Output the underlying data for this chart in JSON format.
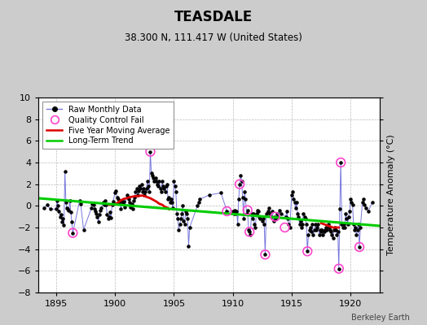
{
  "title": "TEASDALE",
  "subtitle": "38.300 N, 111.417 W (United States)",
  "credit": "Berkeley Earth",
  "ylabel_right": "Temperature Anomaly (°C)",
  "xlim": [
    1893.5,
    1922.5
  ],
  "ylim": [
    -8,
    10
  ],
  "yticks": [
    -8,
    -6,
    -4,
    -2,
    0,
    2,
    4,
    6,
    8,
    10
  ],
  "xticks": [
    1895,
    1900,
    1905,
    1910,
    1915,
    1920
  ],
  "fig_background": "#cccccc",
  "plot_background": "#ffffff",
  "raw_line_color": "#7777dd",
  "raw_dot_color": "#000000",
  "qc_fail_color": "#ff44cc",
  "moving_avg_color": "#dd0000",
  "trend_color": "#00cc00",
  "raw_monthly_data": [
    [
      1894.0,
      -0.2
    ],
    [
      1894.25,
      0.1
    ],
    [
      1894.5,
      -0.3
    ],
    [
      1895.0,
      -0.3
    ],
    [
      1895.083,
      0.5
    ],
    [
      1895.167,
      0.0
    ],
    [
      1895.25,
      -0.5
    ],
    [
      1895.333,
      -1.0
    ],
    [
      1895.417,
      -0.8
    ],
    [
      1895.5,
      -1.5
    ],
    [
      1895.583,
      -1.2
    ],
    [
      1895.667,
      -1.8
    ],
    [
      1895.75,
      3.2
    ],
    [
      1895.833,
      0.3
    ],
    [
      1895.917,
      -0.2
    ],
    [
      1896.0,
      -0.3
    ],
    [
      1896.083,
      -0.4
    ],
    [
      1896.167,
      0.5
    ],
    [
      1896.25,
      -0.6
    ],
    [
      1896.333,
      -1.5
    ],
    [
      1896.417,
      -2.5
    ],
    [
      1897.0,
      0.5
    ],
    [
      1897.083,
      0.2
    ],
    [
      1897.333,
      -2.2
    ],
    [
      1898.0,
      -0.2
    ],
    [
      1898.083,
      0.2
    ],
    [
      1898.167,
      0.1
    ],
    [
      1898.25,
      -0.3
    ],
    [
      1898.333,
      -0.5
    ],
    [
      1898.417,
      -0.7
    ],
    [
      1898.5,
      -1.0
    ],
    [
      1898.583,
      -1.5
    ],
    [
      1898.667,
      -0.8
    ],
    [
      1898.75,
      -0.4
    ],
    [
      1898.833,
      -0.2
    ],
    [
      1899.0,
      0.3
    ],
    [
      1899.083,
      0.1
    ],
    [
      1899.167,
      0.5
    ],
    [
      1899.25,
      0.1
    ],
    [
      1899.333,
      -0.8
    ],
    [
      1899.417,
      -1.2
    ],
    [
      1899.5,
      -1.0
    ],
    [
      1899.583,
      -0.6
    ],
    [
      1899.667,
      -1.1
    ],
    [
      1899.75,
      0.1
    ],
    [
      1899.833,
      0.4
    ],
    [
      1900.0,
      1.2
    ],
    [
      1900.083,
      1.4
    ],
    [
      1900.167,
      0.8
    ],
    [
      1900.25,
      0.6
    ],
    [
      1900.333,
      0.3
    ],
    [
      1900.417,
      0.4
    ],
    [
      1900.5,
      -0.3
    ],
    [
      1900.583,
      0.4
    ],
    [
      1900.667,
      0.2
    ],
    [
      1900.75,
      0.4
    ],
    [
      1900.833,
      -0.1
    ],
    [
      1901.0,
      1.0
    ],
    [
      1901.083,
      0.8
    ],
    [
      1901.167,
      0.6
    ],
    [
      1901.25,
      0.3
    ],
    [
      1901.333,
      -0.1
    ],
    [
      1901.417,
      0.2
    ],
    [
      1901.5,
      -0.3
    ],
    [
      1901.583,
      0.5
    ],
    [
      1901.667,
      0.8
    ],
    [
      1901.75,
      1.3
    ],
    [
      1901.833,
      1.6
    ],
    [
      1901.917,
      1.0
    ],
    [
      1902.0,
      1.4
    ],
    [
      1902.083,
      1.8
    ],
    [
      1902.167,
      1.6
    ],
    [
      1902.25,
      2.0
    ],
    [
      1902.333,
      1.3
    ],
    [
      1902.417,
      1.6
    ],
    [
      1902.5,
      1.0
    ],
    [
      1902.583,
      1.3
    ],
    [
      1902.667,
      1.6
    ],
    [
      1902.75,
      2.3
    ],
    [
      1902.833,
      1.8
    ],
    [
      1902.917,
      1.3
    ],
    [
      1903.0,
      5.0
    ],
    [
      1903.083,
      3.0
    ],
    [
      1903.167,
      2.8
    ],
    [
      1903.25,
      2.6
    ],
    [
      1903.333,
      2.3
    ],
    [
      1903.417,
      2.6
    ],
    [
      1903.5,
      2.3
    ],
    [
      1903.583,
      2.0
    ],
    [
      1903.667,
      1.8
    ],
    [
      1903.75,
      2.3
    ],
    [
      1903.833,
      1.6
    ],
    [
      1903.917,
      1.3
    ],
    [
      1904.0,
      2.3
    ],
    [
      1904.083,
      1.8
    ],
    [
      1904.167,
      1.6
    ],
    [
      1904.25,
      1.3
    ],
    [
      1904.333,
      1.8
    ],
    [
      1904.417,
      2.0
    ],
    [
      1904.5,
      0.6
    ],
    [
      1904.583,
      0.8
    ],
    [
      1904.667,
      0.3
    ],
    [
      1904.75,
      0.6
    ],
    [
      1904.833,
      0.3
    ],
    [
      1904.917,
      -0.2
    ],
    [
      1905.0,
      2.3
    ],
    [
      1905.083,
      1.8
    ],
    [
      1905.167,
      1.3
    ],
    [
      1905.25,
      -0.7
    ],
    [
      1905.333,
      -1.2
    ],
    [
      1905.417,
      -2.2
    ],
    [
      1905.5,
      -1.7
    ],
    [
      1905.583,
      -1.2
    ],
    [
      1905.667,
      -0.7
    ],
    [
      1905.75,
      0.0
    ],
    [
      1905.833,
      -1.4
    ],
    [
      1905.917,
      -1.7
    ],
    [
      1906.0,
      -0.5
    ],
    [
      1906.083,
      -0.7
    ],
    [
      1906.167,
      -1.2
    ],
    [
      1906.25,
      -3.7
    ],
    [
      1906.333,
      -2.0
    ],
    [
      1907.0,
      0.0
    ],
    [
      1907.083,
      0.3
    ],
    [
      1907.167,
      0.6
    ],
    [
      1908.0,
      1.0
    ],
    [
      1909.0,
      1.2
    ],
    [
      1909.5,
      -0.5
    ],
    [
      1910.0,
      -0.5
    ],
    [
      1910.083,
      -0.7
    ],
    [
      1910.167,
      -0.4
    ],
    [
      1910.25,
      -0.7
    ],
    [
      1910.333,
      -0.5
    ],
    [
      1910.417,
      -1.7
    ],
    [
      1910.5,
      0.6
    ],
    [
      1910.583,
      2.0
    ],
    [
      1910.667,
      2.8
    ],
    [
      1910.75,
      2.3
    ],
    [
      1910.833,
      0.8
    ],
    [
      1910.917,
      -1.2
    ],
    [
      1911.0,
      1.3
    ],
    [
      1911.083,
      0.6
    ],
    [
      1911.167,
      -0.7
    ],
    [
      1911.25,
      -0.4
    ],
    [
      1911.333,
      -2.2
    ],
    [
      1911.417,
      -2.4
    ],
    [
      1911.5,
      -2.7
    ],
    [
      1911.583,
      -0.7
    ],
    [
      1911.667,
      -1.2
    ],
    [
      1911.75,
      -0.7
    ],
    [
      1911.833,
      -1.7
    ],
    [
      1911.917,
      -2.0
    ],
    [
      1912.0,
      -0.7
    ],
    [
      1912.083,
      -0.4
    ],
    [
      1912.167,
      -0.5
    ],
    [
      1912.25,
      -1.0
    ],
    [
      1912.333,
      -1.2
    ],
    [
      1912.5,
      -1.4
    ],
    [
      1912.583,
      -1.2
    ],
    [
      1912.667,
      -1.7
    ],
    [
      1912.75,
      -4.5
    ],
    [
      1912.833,
      -0.7
    ],
    [
      1913.0,
      -0.5
    ],
    [
      1913.083,
      -0.2
    ],
    [
      1913.167,
      -0.7
    ],
    [
      1913.25,
      -1.0
    ],
    [
      1913.333,
      -0.5
    ],
    [
      1913.5,
      -1.4
    ],
    [
      1913.583,
      -1.0
    ],
    [
      1913.667,
      -1.2
    ],
    [
      1913.75,
      -0.7
    ],
    [
      1913.833,
      -1.0
    ],
    [
      1914.0,
      -0.4
    ],
    [
      1914.083,
      -0.7
    ],
    [
      1914.5,
      -1.0
    ],
    [
      1914.583,
      -0.5
    ],
    [
      1914.667,
      -1.2
    ],
    [
      1914.75,
      -1.7
    ],
    [
      1914.833,
      -2.0
    ],
    [
      1915.0,
      1.0
    ],
    [
      1915.083,
      1.3
    ],
    [
      1915.167,
      0.6
    ],
    [
      1915.25,
      0.3
    ],
    [
      1915.333,
      -0.2
    ],
    [
      1915.417,
      0.3
    ],
    [
      1915.5,
      -0.7
    ],
    [
      1915.583,
      -1.0
    ],
    [
      1915.667,
      -1.7
    ],
    [
      1915.75,
      -1.4
    ],
    [
      1915.833,
      -2.0
    ],
    [
      1915.917,
      -1.7
    ],
    [
      1916.0,
      -0.7
    ],
    [
      1916.083,
      -1.0
    ],
    [
      1916.167,
      -1.2
    ],
    [
      1916.25,
      -1.7
    ],
    [
      1916.333,
      -4.2
    ],
    [
      1916.417,
      -2.7
    ],
    [
      1916.5,
      -2.2
    ],
    [
      1916.583,
      -2.0
    ],
    [
      1916.667,
      -2.4
    ],
    [
      1916.75,
      -1.7
    ],
    [
      1916.833,
      -2.7
    ],
    [
      1916.917,
      -2.2
    ],
    [
      1917.0,
      -1.7
    ],
    [
      1917.083,
      -2.2
    ],
    [
      1917.167,
      -2.0
    ],
    [
      1917.25,
      -1.7
    ],
    [
      1917.333,
      -2.7
    ],
    [
      1917.417,
      -2.2
    ],
    [
      1917.5,
      -2.4
    ],
    [
      1917.583,
      -2.2
    ],
    [
      1917.667,
      -2.7
    ],
    [
      1917.75,
      -2.4
    ],
    [
      1917.833,
      -2.2
    ],
    [
      1917.917,
      -2.0
    ],
    [
      1918.0,
      -2.2
    ],
    [
      1918.083,
      -1.7
    ],
    [
      1918.167,
      -2.0
    ],
    [
      1918.25,
      -2.2
    ],
    [
      1918.333,
      -2.4
    ],
    [
      1918.417,
      -2.7
    ],
    [
      1918.5,
      -3.0
    ],
    [
      1918.583,
      -2.2
    ],
    [
      1918.667,
      -2.0
    ],
    [
      1918.75,
      -2.2
    ],
    [
      1918.833,
      -2.7
    ],
    [
      1918.917,
      -2.4
    ],
    [
      1919.0,
      -5.8
    ],
    [
      1919.083,
      -0.3
    ],
    [
      1919.167,
      4.0
    ],
    [
      1919.25,
      -1.7
    ],
    [
      1919.333,
      -2.0
    ],
    [
      1919.417,
      -1.7
    ],
    [
      1919.5,
      -2.0
    ],
    [
      1919.583,
      -0.7
    ],
    [
      1919.667,
      -1.2
    ],
    [
      1919.75,
      -1.7
    ],
    [
      1919.833,
      -1.0
    ],
    [
      1919.917,
      -0.5
    ],
    [
      1920.0,
      0.6
    ],
    [
      1920.083,
      0.3
    ],
    [
      1920.167,
      0.1
    ],
    [
      1920.25,
      -1.7
    ],
    [
      1920.333,
      -2.2
    ],
    [
      1920.417,
      -2.0
    ],
    [
      1920.5,
      -2.7
    ],
    [
      1920.583,
      -2.2
    ],
    [
      1920.667,
      -1.7
    ],
    [
      1920.75,
      -3.8
    ],
    [
      1920.833,
      -2.0
    ],
    [
      1921.0,
      0.3
    ],
    [
      1921.083,
      0.6
    ],
    [
      1921.167,
      0.1
    ],
    [
      1921.333,
      -0.2
    ],
    [
      1921.5,
      -0.5
    ],
    [
      1921.833,
      0.3
    ]
  ],
  "qc_fail_points": [
    [
      1896.417,
      -2.5
    ],
    [
      1903.0,
      5.0
    ],
    [
      1909.5,
      -0.5
    ],
    [
      1910.583,
      2.0
    ],
    [
      1911.25,
      -0.4
    ],
    [
      1911.417,
      -2.4
    ],
    [
      1912.75,
      -4.5
    ],
    [
      1913.583,
      -1.0
    ],
    [
      1914.417,
      -2.0
    ],
    [
      1916.333,
      -4.2
    ],
    [
      1919.0,
      -5.8
    ],
    [
      1919.167,
      4.0
    ],
    [
      1920.75,
      -3.8
    ]
  ],
  "moving_avg_seg1": [
    [
      1899.5,
      0.1
    ],
    [
      1899.75,
      0.1
    ],
    [
      1900.0,
      0.15
    ],
    [
      1900.25,
      0.3
    ],
    [
      1900.5,
      0.5
    ],
    [
      1900.75,
      0.65
    ],
    [
      1901.0,
      0.7
    ],
    [
      1901.25,
      0.8
    ],
    [
      1901.5,
      0.85
    ],
    [
      1901.75,
      0.9
    ],
    [
      1902.0,
      0.9
    ],
    [
      1902.25,
      0.95
    ],
    [
      1902.5,
      0.9
    ],
    [
      1902.75,
      0.8
    ],
    [
      1903.0,
      0.7
    ],
    [
      1903.25,
      0.55
    ],
    [
      1903.5,
      0.4
    ],
    [
      1903.75,
      0.2
    ],
    [
      1904.0,
      0.1
    ],
    [
      1904.25,
      -0.1
    ],
    [
      1904.5,
      -0.2
    ],
    [
      1904.583,
      -0.3
    ]
  ],
  "moving_avg_seg2": [
    [
      1917.5,
      -1.6
    ],
    [
      1917.75,
      -1.7
    ],
    [
      1918.0,
      -1.8
    ],
    [
      1918.25,
      -1.9
    ],
    [
      1918.5,
      -2.0
    ],
    [
      1918.75,
      -2.0
    ],
    [
      1919.0,
      -2.0
    ]
  ],
  "trend_line": [
    [
      1893.5,
      0.7
    ],
    [
      1922.5,
      -1.85
    ]
  ]
}
